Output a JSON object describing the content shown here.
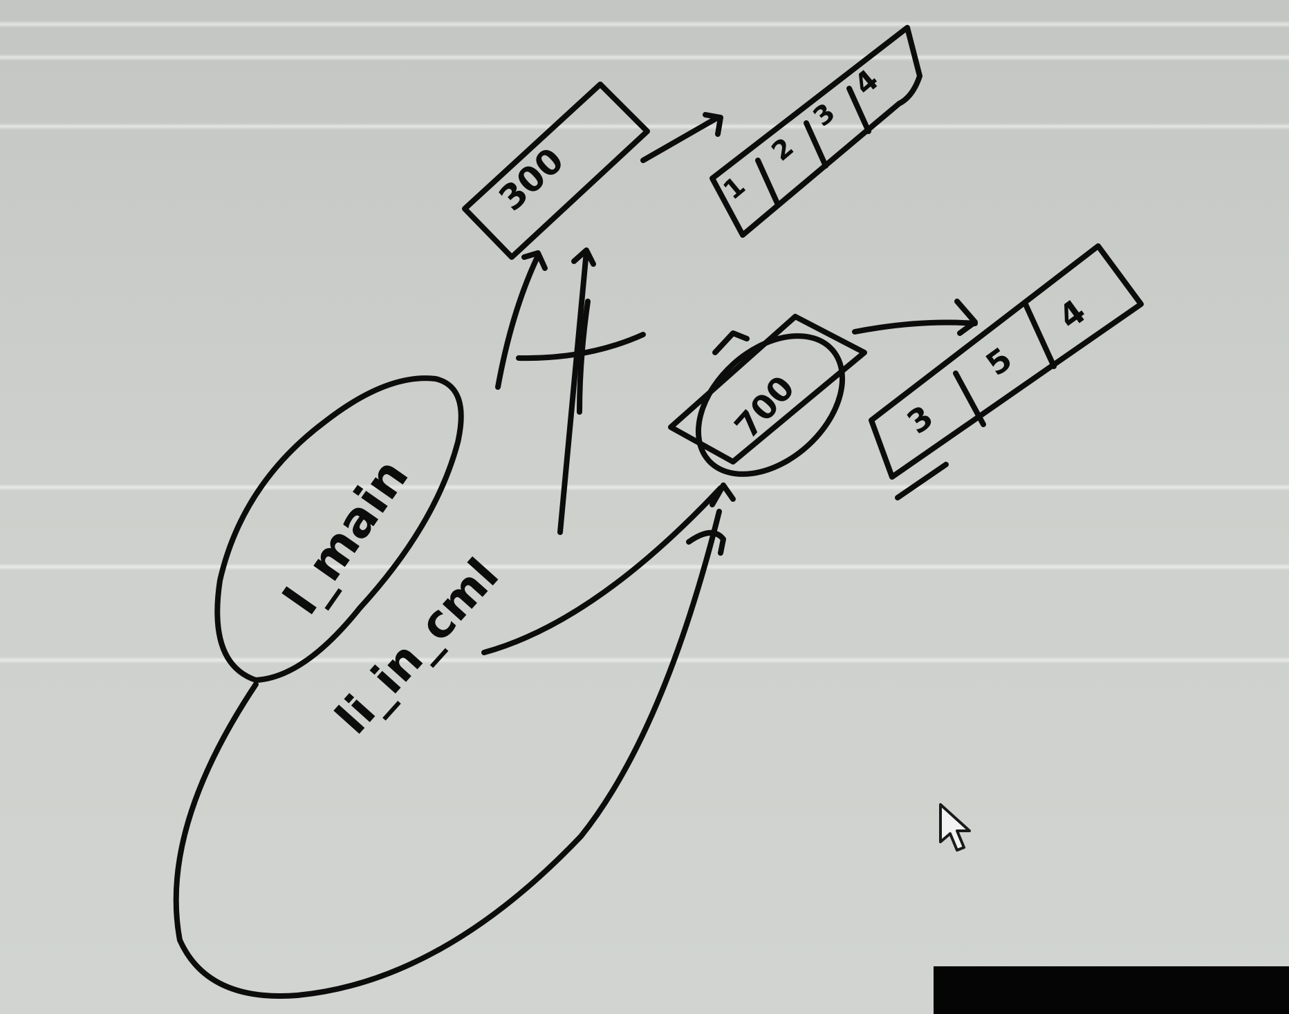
{
  "diagram": {
    "top_reference": {
      "address": "300",
      "cells": [
        "1",
        "2",
        "3",
        "4"
      ]
    },
    "bottom_reference": {
      "address": "700",
      "cells": [
        "3",
        "5",
        "4"
      ]
    },
    "variables": [
      "l_main",
      "li_in_cml"
    ],
    "broken_link_mark": "✗"
  }
}
